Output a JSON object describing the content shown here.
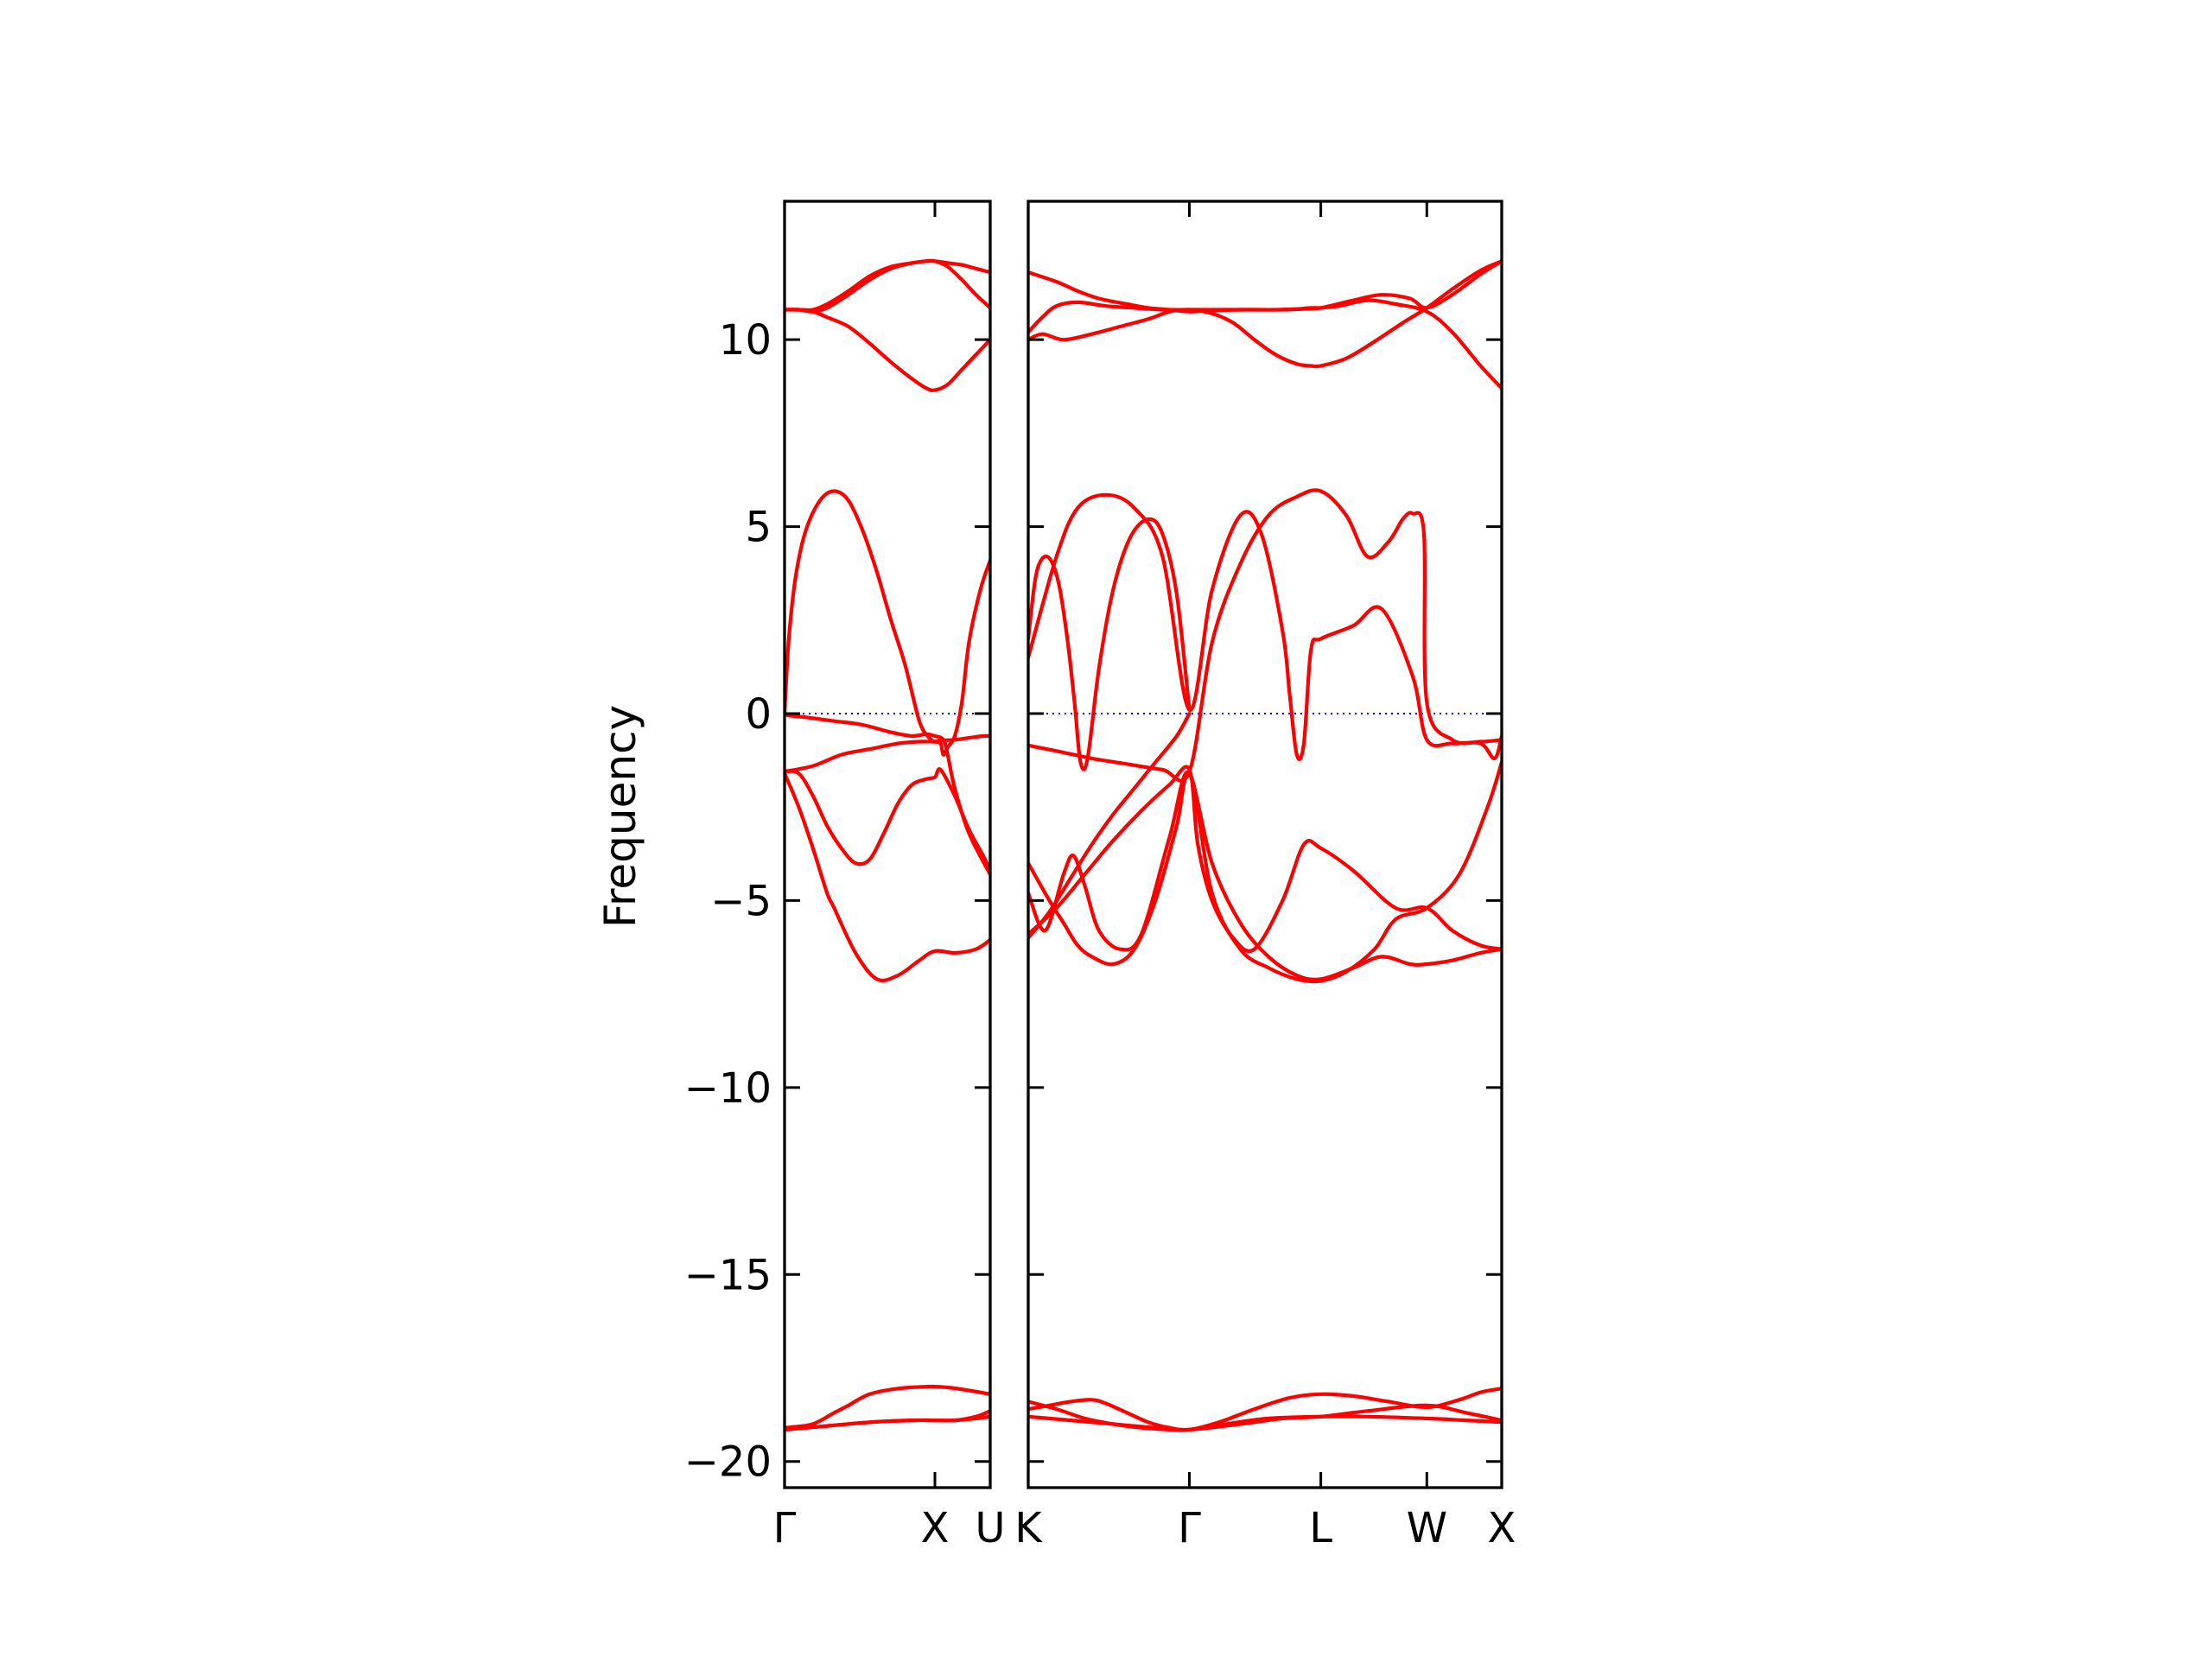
{
  "chart_data": {
    "type": "line",
    "title": "",
    "ylabel": "Frequency",
    "ylim": [
      -20.7,
      13.7
    ],
    "yticks": [
      10,
      5,
      0,
      -5,
      -10,
      -15,
      -20
    ],
    "ytick_labels": [
      "10",
      "5",
      "0",
      "−5",
      "−10",
      "−15",
      "−20"
    ],
    "reference_line": {
      "y": 0,
      "color": "#0000ff",
      "style": "dotted"
    },
    "band_color": "#ff0000",
    "panels": [
      {
        "xlim": [
          0,
          1.45
        ],
        "xticks": [
          0,
          1.06,
          1.45
        ],
        "xtick_labels": [
          "Γ",
          "X",
          "U"
        ],
        "series": [
          {
            "x": [
              0,
              0.05,
              0.2,
              0.35,
              0.45,
              0.6,
              0.8,
              1.0,
              1.06,
              1.15,
              1.3,
              1.45
            ],
            "y": [
              -19.1,
              -19.08,
              -19.0,
              -18.7,
              -18.5,
              -18.2,
              -18.05,
              -18.0,
              -18.0,
              -18.02,
              -18.1,
              -18.2
            ]
          },
          {
            "x": [
              0,
              0.3,
              0.6,
              0.9,
              1.06,
              1.2,
              1.35,
              1.45
            ],
            "y": [
              -19.15,
              -19.05,
              -18.95,
              -18.9,
              -18.9,
              -18.9,
              -18.85,
              -18.8
            ]
          },
          {
            "x": [
              0,
              0.3,
              0.6,
              0.9,
              1.06,
              1.2,
              1.35,
              1.45
            ],
            "y": [
              -19.15,
              -19.05,
              -18.95,
              -18.9,
              -18.9,
              -18.9,
              -18.8,
              -18.65
            ]
          },
          {
            "x": [
              0,
              0.1,
              0.2,
              0.3,
              0.35,
              0.5,
              0.65,
              0.8,
              0.95,
              1.06,
              1.2,
              1.35,
              1.45
            ],
            "y": [
              -1.6,
              -2.5,
              -3.6,
              -4.8,
              -5.2,
              -6.4,
              -7.1,
              -7.0,
              -6.6,
              -6.35,
              -6.4,
              -6.3,
              -6.05
            ]
          },
          {
            "x": [
              0,
              0.2,
              0.4,
              0.6,
              0.8,
              0.95,
              1.06,
              1.1,
              1.2,
              1.3,
              1.4,
              1.45
            ],
            "y": [
              -1.55,
              -1.4,
              -1.1,
              -0.95,
              -0.8,
              -0.75,
              -0.75,
              -0.72,
              -0.7,
              -0.65,
              -0.6,
              -0.6
            ]
          },
          {
            "x": [
              0,
              0.1,
              0.2,
              0.3,
              0.4,
              0.5,
              0.6,
              0.7,
              0.8,
              0.9,
              1.0,
              1.06,
              1.1,
              1.2,
              1.3,
              1.4,
              1.45
            ],
            "y": [
              -1.55,
              -1.6,
              -2.2,
              -3.0,
              -3.6,
              -4.0,
              -3.9,
              -3.2,
              -2.4,
              -1.9,
              -1.75,
              -1.7,
              -1.5,
              -2.2,
              -3.1,
              -3.8,
              -4.2
            ]
          },
          {
            "x": [
              0,
              0.03,
              0.08,
              0.15,
              0.25,
              0.35,
              0.45,
              0.55,
              0.65,
              0.75,
              0.85,
              0.95,
              1.02,
              1.06,
              1.1,
              1.12,
              1.15,
              1.2,
              1.25,
              1.3,
              1.38,
              1.45
            ],
            "y": [
              0,
              2.0,
              3.7,
              4.9,
              5.7,
              5.95,
              5.7,
              4.9,
              3.8,
              2.5,
              1.3,
              -0.2,
              -0.65,
              -0.75,
              -0.8,
              -1.1,
              -0.9,
              -0.6,
              0.3,
              1.9,
              3.3,
              4.1
            ]
          },
          {
            "x": [
              0,
              0.03,
              0.15,
              0.35,
              0.55,
              0.75,
              0.9,
              1.0,
              1.06,
              1.12,
              1.15,
              1.2,
              1.3,
              1.45
            ],
            "y": [
              0,
              -0.05,
              -0.1,
              -0.2,
              -0.3,
              -0.5,
              -0.6,
              -0.55,
              -0.6,
              -0.7,
              -1.1,
              -2.0,
              -3.2,
              -4.3
            ]
          },
          {
            "x": [
              0,
              0.1,
              0.2,
              0.3,
              0.45,
              0.6,
              0.75,
              0.9,
              1.0,
              1.06,
              1.15,
              1.25,
              1.35,
              1.45
            ],
            "y": [
              10.8,
              10.8,
              10.75,
              10.85,
              11.2,
              11.6,
              11.9,
              12.05,
              12.1,
              12.1,
              12.05,
              12.0,
              11.9,
              11.8
            ]
          },
          {
            "x": [
              0,
              0.1,
              0.2,
              0.3,
              0.45,
              0.6,
              0.75,
              0.9,
              1.0,
              1.06,
              1.15,
              1.25,
              1.35,
              1.45
            ],
            "y": [
              10.8,
              10.8,
              10.75,
              10.6,
              10.35,
              9.9,
              9.4,
              8.95,
              8.7,
              8.65,
              8.8,
              9.2,
              9.6,
              10.0
            ]
          },
          {
            "x": [
              0,
              0.1,
              0.2,
              0.3,
              0.45,
              0.6,
              0.75,
              0.9,
              1.0,
              1.06,
              1.15,
              1.25,
              1.35,
              1.45
            ],
            "y": [
              10.8,
              10.8,
              10.8,
              10.95,
              11.3,
              11.7,
              11.95,
              12.05,
              12.1,
              12.1,
              11.95,
              11.6,
              11.2,
              10.85
            ]
          }
        ]
      },
      {
        "xlim": [
          0,
          3.35
        ],
        "xticks": [
          0,
          1.14,
          2.07,
          2.82,
          3.35
        ],
        "xtick_labels": [
          "K",
          "Γ",
          "L",
          "W",
          "X"
        ],
        "series": [
          {
            "x": [
              0,
              0.2,
              0.4,
              0.6,
              0.8,
              1.0,
              1.14,
              1.4,
              1.7,
              2.07,
              2.4,
              2.82,
              3.1,
              3.35
            ],
            "y": [
              -18.4,
              -18.6,
              -18.85,
              -19.0,
              -19.1,
              -19.15,
              -19.15,
              -19.0,
              -18.85,
              -18.8,
              -18.8,
              -18.85,
              -18.9,
              -18.95
            ]
          },
          {
            "x": [
              0,
              0.15,
              0.3,
              0.45,
              0.55,
              0.7,
              0.85,
              1.0,
              1.14,
              1.35,
              1.6,
              1.85,
              2.07,
              2.3,
              2.55,
              2.82,
              3.05,
              3.2,
              3.35
            ],
            "y": [
              -18.6,
              -18.5,
              -18.4,
              -18.35,
              -18.45,
              -18.7,
              -18.95,
              -19.1,
              -19.15,
              -18.95,
              -18.6,
              -18.3,
              -18.2,
              -18.25,
              -18.4,
              -18.55,
              -18.35,
              -18.15,
              -18.05
            ]
          },
          {
            "x": [
              0,
              0.3,
              0.6,
              0.9,
              1.14,
              1.5,
              1.8,
              2.07,
              2.4,
              2.82,
              3.1,
              3.35
            ],
            "y": [
              -18.8,
              -18.9,
              -19.0,
              -19.1,
              -19.15,
              -19.0,
              -18.85,
              -18.8,
              -18.65,
              -18.5,
              -18.7,
              -18.9
            ]
          },
          {
            "x": [
              0,
              0.2,
              0.35,
              0.5,
              0.7,
              0.85,
              1.0,
              1.14,
              1.3,
              1.5,
              1.65,
              1.8,
              1.95,
              2.07,
              2.3,
              2.5,
              2.7,
              2.82,
              3.0,
              3.2,
              3.35
            ],
            "y": [
              11.8,
              11.55,
              11.3,
              11.1,
              10.95,
              10.85,
              10.8,
              10.75,
              10.78,
              10.8,
              10.8,
              10.8,
              10.82,
              10.85,
              11.05,
              11.2,
              11.1,
              10.85,
              11.2,
              11.75,
              12.1
            ]
          },
          {
            "x": [
              0,
              0.1,
              0.2,
              0.35,
              0.55,
              0.75,
              0.95,
              1.14,
              1.3,
              1.45,
              1.6,
              1.75,
              1.9,
              2.0,
              2.07,
              2.2,
              2.4,
              2.6,
              2.82,
              3.0,
              3.2,
              3.35
            ],
            "y": [
              10.2,
              10.6,
              10.9,
              11.0,
              10.9,
              10.85,
              10.8,
              10.8,
              10.8,
              10.8,
              10.8,
              10.8,
              10.82,
              10.85,
              10.85,
              10.9,
              11.05,
              10.95,
              10.75,
              10.2,
              9.3,
              8.7
            ]
          },
          {
            "x": [
              0,
              0.1,
              0.25,
              0.45,
              0.65,
              0.85,
              1.0,
              1.14,
              1.3,
              1.45,
              1.6,
              1.75,
              1.9,
              2.0,
              2.07,
              2.25,
              2.45,
              2.65,
              2.82,
              3.0,
              3.2,
              3.35
            ],
            "y": [
              10.0,
              10.15,
              10.0,
              10.15,
              10.35,
              10.55,
              10.75,
              10.8,
              10.7,
              10.45,
              10.0,
              9.6,
              9.35,
              9.3,
              9.3,
              9.5,
              9.95,
              10.45,
              10.85,
              11.35,
              11.85,
              12.1
            ]
          },
          {
            "x": [
              0,
              0.05,
              0.1,
              0.16,
              0.22,
              0.28,
              0.33,
              0.37,
              0.42,
              0.5,
              0.6,
              0.72,
              0.85,
              0.95,
              1.05,
              1.14
            ],
            "y": [
              2.0,
              3.6,
              4.15,
              4.1,
              3.4,
              1.9,
              0.2,
              -1.3,
              -1.2,
              1.2,
              3.3,
              4.7,
              5.2,
              4.8,
              3.2,
              0.1
            ]
          },
          {
            "x": [
              0,
              0.2,
              0.35,
              0.55,
              0.75,
              0.95,
              1.14,
              1.3,
              1.5,
              1.65,
              1.8,
              1.85,
              1.9,
              1.95,
              2.0,
              2.07,
              2.3,
              2.5,
              2.72,
              2.82,
              3.0,
              3.2,
              3.3,
              3.35
            ],
            "y": [
              1.5,
              4.2,
              5.5,
              5.85,
              5.5,
              4.2,
              0.1,
              3.3,
              5.3,
              4.8,
              2.2,
              0.5,
              -1.1,
              -0.8,
              1.7,
              2.0,
              2.35,
              2.8,
              1.0,
              -0.7,
              -0.8,
              -0.8,
              -1.2,
              -0.6
            ]
          },
          {
            "x": [
              0,
              0.2,
              0.45,
              0.7,
              0.95,
              1.14,
              1.3,
              1.5,
              1.7,
              1.9,
              2.07,
              2.25,
              2.4,
              2.55,
              2.65,
              2.72,
              2.8,
              2.82,
              3.0,
              3.2,
              3.35
            ],
            "y": [
              -0.85,
              -1.0,
              -1.2,
              -1.35,
              -1.5,
              -1.55,
              1.9,
              4.0,
              5.3,
              5.8,
              5.95,
              5.3,
              4.2,
              4.6,
              5.2,
              5.35,
              4.8,
              0.3,
              -0.7,
              -0.75,
              -0.7
            ]
          },
          {
            "x": [
              0,
              0.15,
              0.3,
              0.45,
              0.6,
              0.75,
              0.9,
              1.05,
              1.14
            ],
            "y": [
              -6.0,
              -5.3,
              -4.4,
              -3.5,
              -2.7,
              -2.0,
              -1.3,
              -0.6,
              0.0
            ]
          },
          {
            "x": [
              0,
              0.2,
              0.4,
              0.6,
              0.8,
              1.0,
              1.14,
              1.2,
              1.3,
              1.45,
              1.6,
              1.8,
              1.95,
              2.07,
              2.3,
              2.6,
              2.82,
              3.0,
              3.2,
              3.35
            ],
            "y": [
              -5.9,
              -5.2,
              -4.3,
              -3.4,
              -2.6,
              -1.9,
              -1.5,
              -3.5,
              -5.0,
              -6.0,
              -6.3,
              -5.0,
              -3.5,
              -3.6,
              -4.2,
              -5.2,
              -5.2,
              -5.8,
              -6.2,
              -6.3
            ]
          },
          {
            "x": [
              0,
              0.15,
              0.25,
              0.35,
              0.45,
              0.6,
              0.75,
              0.9,
              1.05,
              1.14,
              1.3,
              1.5,
              1.7,
              1.9,
              2.07,
              2.3,
              2.5,
              2.7,
              2.82,
              3.0,
              3.2,
              3.35
            ],
            "y": [
              -4.0,
              -5.0,
              -5.6,
              -6.2,
              -6.5,
              -6.7,
              -6.3,
              -5.0,
              -3.0,
              -1.6,
              -4.0,
              -5.6,
              -6.5,
              -7.0,
              -7.1,
              -6.8,
              -6.5,
              -6.7,
              -6.7,
              -6.6,
              -6.4,
              -6.3
            ]
          },
          {
            "x": [
              0,
              0.12,
              0.25,
              0.32,
              0.4,
              0.5,
              0.65,
              0.8,
              1.0,
              1.14,
              1.3,
              1.5,
              1.7,
              1.9,
              2.07,
              2.25,
              2.45,
              2.6,
              2.82,
              3.05,
              3.25,
              3.35
            ],
            "y": [
              -4.8,
              -5.8,
              -4.3,
              -3.8,
              -4.6,
              -5.8,
              -6.3,
              -5.9,
              -3.3,
              -1.6,
              -4.8,
              -6.3,
              -6.8,
              -7.1,
              -7.15,
              -6.9,
              -6.3,
              -5.5,
              -5.2,
              -4.3,
              -2.5,
              -1.3
            ]
          }
        ]
      }
    ]
  }
}
